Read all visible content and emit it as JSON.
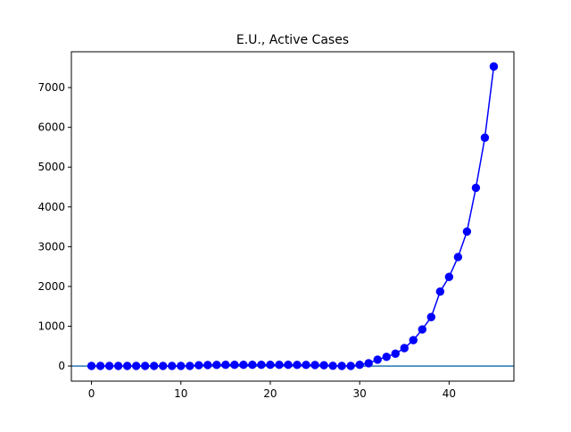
{
  "chart_data": {
    "type": "line",
    "title": "E.U., Active Cases",
    "xlabel": "",
    "ylabel": "",
    "xlim": [
      -2.25,
      47.25
    ],
    "ylim": [
      -380,
      7900
    ],
    "x_ticks": [
      0,
      10,
      20,
      30,
      40
    ],
    "y_ticks": [
      0,
      1000,
      2000,
      3000,
      4000,
      5000,
      6000,
      7000
    ],
    "grid": false,
    "legend": "none",
    "reference_line": {
      "y": 0,
      "color": "#1f77b4"
    },
    "series": [
      {
        "color": "#0000ff",
        "marker": "circle",
        "x": [
          0,
          1,
          2,
          3,
          4,
          5,
          6,
          7,
          8,
          9,
          10,
          11,
          12,
          13,
          14,
          15,
          16,
          17,
          18,
          19,
          20,
          21,
          22,
          23,
          24,
          25,
          26,
          27,
          28,
          29,
          30,
          31,
          32,
          33,
          34,
          35,
          36,
          37,
          38,
          39,
          40,
          41,
          42,
          43,
          44,
          45
        ],
        "values": [
          2,
          2,
          2,
          2,
          2,
          2,
          2,
          2,
          2,
          2,
          2,
          2,
          20,
          25,
          28,
          30,
          30,
          30,
          30,
          30,
          30,
          30,
          30,
          28,
          28,
          25,
          20,
          5,
          2,
          2,
          30,
          70,
          160,
          230,
          310,
          450,
          650,
          920,
          1230,
          1870,
          2240,
          2740,
          3380,
          4480,
          5740,
          7530
        ]
      }
    ]
  }
}
